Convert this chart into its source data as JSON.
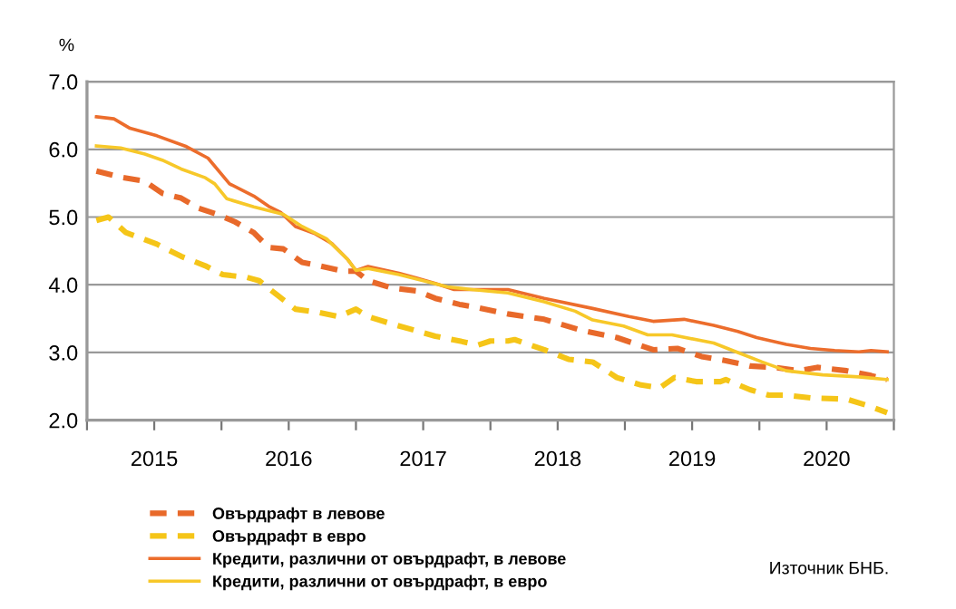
{
  "chart_data": {
    "type": "line",
    "ylabel": "%",
    "xlim": [
      2015,
      2021
    ],
    "ylim": [
      2.0,
      7.0
    ],
    "yticks": [
      {
        "value": 2.0,
        "label": "2.0"
      },
      {
        "value": 3.0,
        "label": "3.0"
      },
      {
        "value": 4.0,
        "label": "4.0"
      },
      {
        "value": 5.0,
        "label": "5.0"
      },
      {
        "value": 6.0,
        "label": "6.0"
      },
      {
        "value": 7.0,
        "label": "7.0"
      }
    ],
    "xticks": [
      {
        "value": 2015,
        "label": null
      },
      {
        "value": 2015.5,
        "label": "2015"
      },
      {
        "value": 2016,
        "label": null
      },
      {
        "value": 2016.5,
        "label": "2016"
      },
      {
        "value": 2017,
        "label": null
      },
      {
        "value": 2017.5,
        "label": "2017"
      },
      {
        "value": 2018,
        "label": null
      },
      {
        "value": 2018.5,
        "label": "2018"
      },
      {
        "value": 2019,
        "label": null
      },
      {
        "value": 2019.5,
        "label": "2019"
      },
      {
        "value": 2020,
        "label": null
      },
      {
        "value": 2020.5,
        "label": "2020"
      },
      {
        "value": 2021,
        "label": null
      }
    ],
    "grid": "y",
    "legend": "bottom left",
    "annotations": [
      "Източник БНБ."
    ],
    "series": [
      {
        "name": "Овърдрафт в левове",
        "color": "#e8692a",
        "line_style": "dashed",
        "x": [
          2015.07,
          2015.25,
          2015.43,
          2015.56,
          2015.7,
          2015.83,
          2015.97,
          2016.1,
          2016.24,
          2016.35,
          2016.46,
          2016.6,
          2016.73,
          2016.91,
          2017.0,
          2017.09,
          2017.27,
          2017.45,
          2017.59,
          2017.77,
          2017.86,
          2018.13,
          2018.4,
          2018.67,
          2018.94,
          2019.21,
          2019.39,
          2019.57,
          2019.75,
          2019.93,
          2020.11,
          2020.29,
          2020.43,
          2020.65,
          2020.83,
          2020.95
        ],
        "values": [
          5.68,
          5.59,
          5.53,
          5.35,
          5.28,
          5.13,
          5.04,
          4.93,
          4.77,
          4.55,
          4.53,
          4.33,
          4.28,
          4.2,
          4.2,
          4.06,
          3.95,
          3.91,
          3.8,
          3.71,
          3.68,
          3.57,
          3.49,
          3.33,
          3.22,
          3.04,
          3.06,
          2.94,
          2.88,
          2.8,
          2.78,
          2.73,
          2.78,
          2.73,
          2.66,
          2.6
        ]
      },
      {
        "name": "Овърдрафт в евро",
        "color": "#f5c518",
        "line_style": "dashed",
        "x": [
          2015.07,
          2015.16,
          2015.29,
          2015.52,
          2015.7,
          2015.88,
          2016.01,
          2016.19,
          2016.28,
          2016.42,
          2016.55,
          2016.73,
          2016.87,
          2017.0,
          2017.09,
          2017.27,
          2017.45,
          2017.59,
          2017.77,
          2017.91,
          2018.0,
          2018.13,
          2018.18,
          2018.4,
          2018.58,
          2018.76,
          2018.94,
          2019.12,
          2019.26,
          2019.37,
          2019.53,
          2019.71,
          2019.75,
          2019.93,
          2020.07,
          2020.2,
          2020.38,
          2020.65,
          2020.83,
          2020.95
        ],
        "values": [
          4.95,
          5.0,
          4.77,
          4.6,
          4.42,
          4.28,
          4.15,
          4.11,
          4.06,
          3.84,
          3.64,
          3.59,
          3.53,
          3.64,
          3.53,
          3.42,
          3.32,
          3.24,
          3.17,
          3.11,
          3.17,
          3.17,
          3.19,
          3.04,
          2.9,
          2.86,
          2.63,
          2.52,
          2.48,
          2.63,
          2.57,
          2.57,
          2.6,
          2.45,
          2.37,
          2.37,
          2.33,
          2.31,
          2.2,
          2.11
        ]
      },
      {
        "name": "Кредити, различни от овърдрафт, в левове",
        "color": "#ec6d2c",
        "line_style": "solid",
        "x": [
          2015.07,
          2015.2,
          2015.32,
          2015.52,
          2015.74,
          2015.9,
          2016.06,
          2016.24,
          2016.35,
          2016.44,
          2016.55,
          2016.69,
          2016.82,
          2016.94,
          2017.0,
          2017.09,
          2017.32,
          2017.45,
          2017.59,
          2017.73,
          2018.13,
          2018.4,
          2018.76,
          2019.03,
          2019.21,
          2019.44,
          2019.66,
          2019.84,
          2019.98,
          2020.2,
          2020.38,
          2020.56,
          2020.74,
          2020.83,
          2020.95
        ],
        "values": [
          6.48,
          6.45,
          6.31,
          6.2,
          6.04,
          5.87,
          5.49,
          5.31,
          5.16,
          5.07,
          4.86,
          4.76,
          4.61,
          4.37,
          4.21,
          4.27,
          4.17,
          4.1,
          4.02,
          3.93,
          3.93,
          3.8,
          3.65,
          3.53,
          3.46,
          3.49,
          3.4,
          3.31,
          3.22,
          3.12,
          3.06,
          3.03,
          3.01,
          3.03,
          3.01
        ]
      },
      {
        "name": "Кредити, различни от овърдрафт, в евро",
        "color": "#f7c829",
        "line_style": "solid",
        "x": [
          2015.07,
          2015.25,
          2015.43,
          2015.56,
          2015.7,
          2015.88,
          2015.95,
          2016.04,
          2016.24,
          2016.46,
          2016.6,
          2016.78,
          2016.94,
          2017.0,
          2017.09,
          2017.32,
          2017.5,
          2017.68,
          2017.86,
          2018.13,
          2018.4,
          2018.63,
          2018.76,
          2018.99,
          2019.17,
          2019.35,
          2019.66,
          2019.84,
          2020.02,
          2020.2,
          2020.47,
          2020.74,
          2020.95
        ],
        "values": [
          6.05,
          6.02,
          5.93,
          5.84,
          5.71,
          5.58,
          5.49,
          5.27,
          5.15,
          5.04,
          4.86,
          4.68,
          4.37,
          4.21,
          4.24,
          4.15,
          4.06,
          3.97,
          3.93,
          3.88,
          3.75,
          3.61,
          3.48,
          3.39,
          3.26,
          3.26,
          3.14,
          3.0,
          2.86,
          2.73,
          2.67,
          2.64,
          2.6
        ]
      }
    ]
  }
}
